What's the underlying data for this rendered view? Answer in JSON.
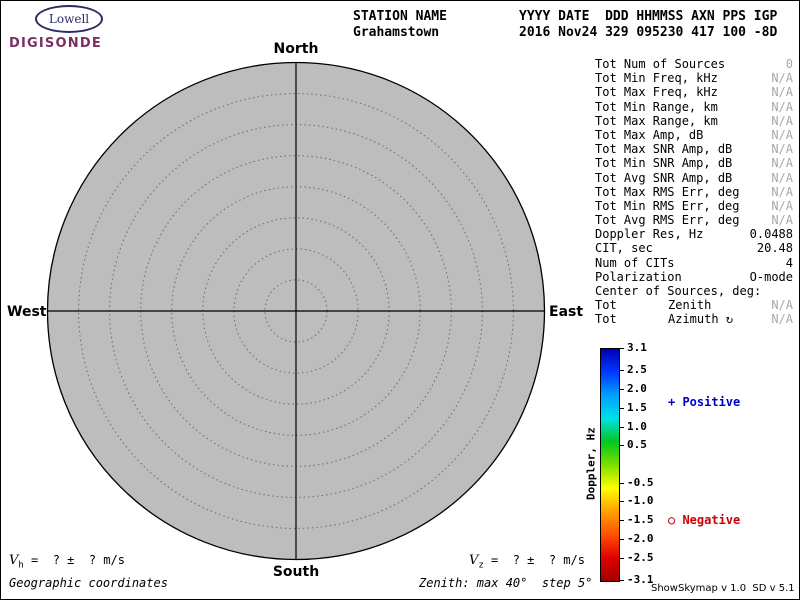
{
  "colors": {
    "plot_fill": "#bdbdbd",
    "positive": "#0000cc",
    "negative": "#cc0000",
    "brand_purple": "#7a2f63",
    "brand_navy": "#2a2a66",
    "na_gray": "#a8a8a8"
  },
  "logo": {
    "brand": "Lowell",
    "product": "DIGISONDE"
  },
  "header": {
    "station_label": "STATION NAME",
    "station_value": "Grahamstown",
    "fields_label": "YYYY DATE  DDD HHMMSS AXN PPS IGP",
    "fields_value": "2016 Nov24 329 095230 417 100 -8D"
  },
  "plot": {
    "north": "North",
    "south": "South",
    "west": "West",
    "east": "East",
    "rings": 8
  },
  "stats": {
    "rows": [
      {
        "label": "Tot Num of Sources",
        "value": "0",
        "gray": true
      },
      {
        "label": "Tot Min Freq, kHz",
        "value": "N/A",
        "gray": true
      },
      {
        "label": "Tot Max Freq, kHz",
        "value": "N/A",
        "gray": true
      },
      {
        "label": "Tot Min Range, km",
        "value": "N/A",
        "gray": true
      },
      {
        "label": "Tot Max Range, km",
        "value": "N/A",
        "gray": true
      },
      {
        "label": "Tot Max Amp, dB",
        "value": "N/A",
        "gray": true
      },
      {
        "label": "Tot Max SNR Amp, dB",
        "value": "N/A",
        "gray": true
      },
      {
        "label": "Tot Min SNR Amp, dB",
        "value": "N/A",
        "gray": true
      },
      {
        "label": "Tot Avg SNR Amp, dB",
        "value": "N/A",
        "gray": true
      },
      {
        "label": "Tot Max RMS Err, deg",
        "value": "N/A",
        "gray": true
      },
      {
        "label": "Tot Min RMS Err, deg",
        "value": "N/A",
        "gray": true
      },
      {
        "label": "Tot Avg RMS Err, deg",
        "value": "N/A",
        "gray": true
      },
      {
        "label": "Doppler Res, Hz",
        "value": "0.0488",
        "gray": false
      },
      {
        "label": "CIT, sec",
        "value": "20.48",
        "gray": false
      },
      {
        "label": "Num of CITs",
        "value": "4",
        "gray": false
      },
      {
        "label": "Polarization",
        "value": "O-mode",
        "gray": false
      },
      {
        "label": "Center of Sources, deg:",
        "value": "",
        "gray": false
      },
      {
        "label": "Tot",
        "mid": "Zenith",
        "value": "N/A",
        "gray": true
      },
      {
        "label": "Tot",
        "mid": "Azimuth ↻",
        "value": "N/A",
        "gray": true
      }
    ]
  },
  "colorbar": {
    "axis_label": "Doppler, Hz",
    "max": 3.1,
    "min": -3.1,
    "ticks": [
      "3.1",
      "2.5",
      "2.0",
      "1.5",
      "1.0",
      "0.5",
      "-0.5",
      "-1.0",
      "-1.5",
      "-2.0",
      "-2.5",
      "-3.1"
    ],
    "gradient": [
      "#0000b4",
      "#0038ff",
      "#00a0ff",
      "#00e0e8",
      "#00c820",
      "#7ce000",
      "#ffff00",
      "#ffa000",
      "#ff5000",
      "#e00000",
      "#a00000"
    ],
    "positive_label": "+ Positive",
    "negative_label": "○ Negative"
  },
  "footer": {
    "vh_var": "V",
    "vh_sub": "h",
    "vh_rest": " =  ? ±  ? m/s",
    "vz_var": "V",
    "vz_sub": "z",
    "vz_rest": " =  ? ±  ? m/s",
    "coords_note": "Geographic coordinates",
    "zenith_note": "Zenith: max 40°  step 5°",
    "version": "ShowSkymap v 1.0  SD v 5.1"
  },
  "chart_data": {
    "type": "scatter",
    "projection": "polar-skymap",
    "title": "Digisonde skymap, Grahamstown, 2016 Nov24 329 095230",
    "direction_labels": [
      "North",
      "East",
      "South",
      "West"
    ],
    "zenith_max_deg": 40,
    "zenith_step_deg": 5,
    "num_sources": 0,
    "points": [],
    "colorbar": {
      "label": "Doppler, Hz",
      "min": -3.1,
      "max": 3.1,
      "ticks": [
        3.1,
        2.5,
        2.0,
        1.5,
        1.0,
        0.5,
        -0.5,
        -1.0,
        -1.5,
        -2.0,
        -2.5,
        -3.1
      ]
    }
  }
}
